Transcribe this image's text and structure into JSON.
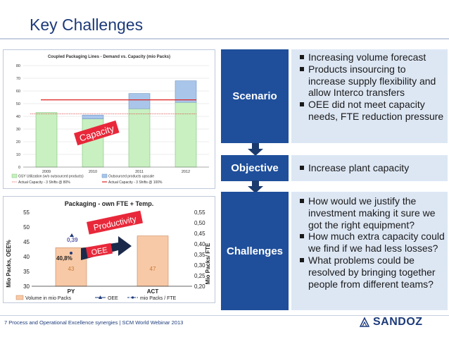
{
  "title": "Key Challenges",
  "chart1": {
    "title": "Coupled Packaging Lines - Demand vs. Capacity (mio Packs)",
    "y_ticks": [
      "80",
      "70",
      "60",
      "50",
      "40",
      "30",
      "20",
      "10",
      "0"
    ],
    "categories": [
      "2009",
      "2010",
      "2011",
      "2012"
    ],
    "overlay_label": "Capacity",
    "legend": [
      "GSY Utilization (w/o outsourced products)",
      "Outsourced products upscale",
      "Actual Capacity - 3 Shifts @ 80%",
      "Actual Capacity - 3 Shifts @ 100%"
    ]
  },
  "chart2": {
    "title": "Packaging - own FTE + Temp.",
    "y_left_label": "Mio Packs, OEE%",
    "y_right_label": "Mio Packs/ FTE",
    "y_left_ticks": [
      "55",
      "50",
      "45",
      "40",
      "35",
      "30"
    ],
    "y_right_ticks": [
      "0,55",
      "0,50",
      "0,45",
      "0,40",
      "0,35",
      "0,30",
      "0,25",
      "0,20"
    ],
    "categories": [
      "PY",
      "ACT"
    ],
    "bar_labels": [
      "43",
      "47"
    ],
    "oee_label": "40,8%",
    "fte_label": "0,39",
    "overlay_productivity": "Productivity",
    "overlay_oee": "OEE",
    "legend": [
      "Volume in mio Packs",
      "OEE",
      "mio Packs / FTE"
    ]
  },
  "chart_data": [
    {
      "type": "bar",
      "title": "Coupled Packaging Lines - Demand vs. Capacity (mio Packs)",
      "categories": [
        "2009",
        "2010",
        "2011",
        "2012"
      ],
      "series": [
        {
          "name": "GSY Utilization (w/o outsourced products)",
          "values": [
            43,
            38,
            46,
            51
          ]
        },
        {
          "name": "Outsourced products upscale",
          "values": [
            0,
            3,
            12,
            17
          ]
        },
        {
          "name": "Actual Capacity - 3 Shifts @ 80%",
          "values": [
            42,
            42,
            42,
            42
          ]
        },
        {
          "name": "Actual Capacity - 3 Shifts @ 100%",
          "values": [
            53,
            53,
            53,
            53
          ]
        }
      ],
      "ylim": [
        0,
        80
      ],
      "legend": "bottom"
    },
    {
      "type": "bar",
      "title": "Packaging - own FTE + Temp.",
      "categories": [
        "PY",
        "ACT"
      ],
      "series": [
        {
          "name": "Volume in mio Packs",
          "values": [
            43,
            47
          ]
        },
        {
          "name": "OEE",
          "values": [
            40.8,
            null
          ]
        },
        {
          "name": "mio Packs / FTE",
          "values": [
            0.39,
            null
          ]
        }
      ],
      "ylim": [
        30,
        55
      ],
      "y2lim": [
        0.2,
        0.55
      ],
      "legend": "bottom"
    }
  ],
  "labels": {
    "scenario": "Scenario",
    "objective": "Objective",
    "challenges": "Challenges"
  },
  "scenario_bullets": [
    "Increasing volume forecast",
    "Products insourcing to increase supply flexibility and allow Interco transfers",
    "OEE did not meet capacity needs, FTE reduction pressure"
  ],
  "objective_bullets": [
    "Increase plant capacity"
  ],
  "challenges_bullets": [
    "How would we justify the investment making it sure we got the right equipment?",
    "How much extra capacity could we find if we had less losses?",
    "What problems could be resolved by bringing together people from different teams?"
  ],
  "footer": "7 Process and Operational Excellence synergies | SCM World Webinar 2013",
  "logo_text": "SANDOZ",
  "colors": {
    "accent": "#1f4f9b",
    "box": "#dde7f4",
    "bar_green": "#c8f0c0",
    "bar_blue": "#a9c6ea",
    "bar_orange": "#f8c9a6",
    "arrow_navy": "#1b3a6d"
  }
}
